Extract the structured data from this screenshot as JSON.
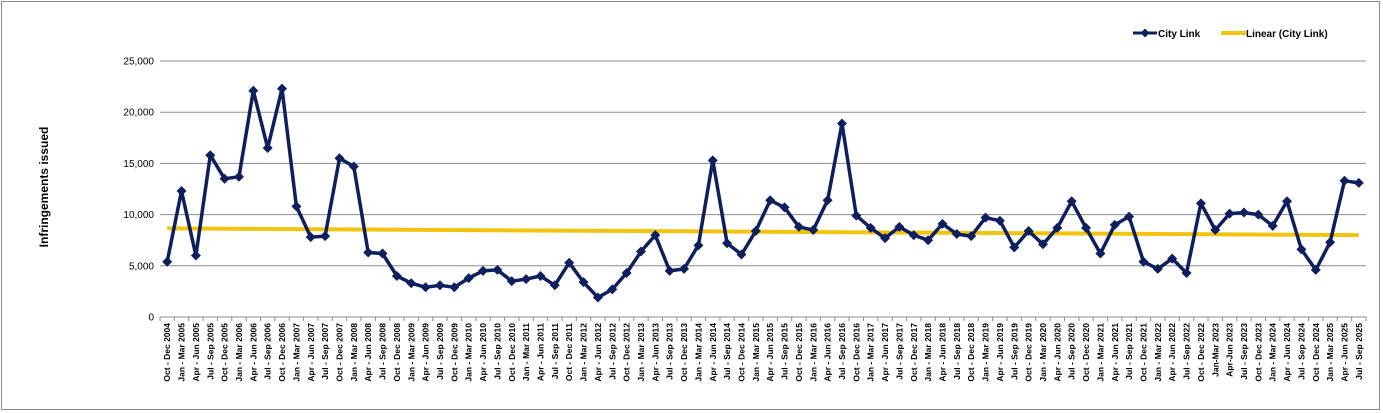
{
  "chart_data": {
    "type": "line",
    "ylabel": "Infringements issued",
    "ylim": [
      0,
      25000
    ],
    "yticks": [
      0,
      5000,
      10000,
      15000,
      20000,
      25000
    ],
    "ytick_labels": [
      "0",
      "5,000",
      "10,000",
      "15,000",
      "20,000",
      "25,000"
    ],
    "grid": "horizontal",
    "legend_position": "top-right",
    "categories": [
      "Oct - Dec 2004",
      "Jan - Mar 2005",
      "Apr - Jun 2005",
      "Jul - Sep 2005",
      "Oct - Dec 2005",
      "Jan - Mar 2006",
      "Apr - Jun 2006",
      "Jul - Sep 2006",
      "Oct - Dec 2006",
      "Jan - Mar 2007",
      "Apr - Jun 2007",
      "Jul - Sep 2007",
      "Oct - Dec 2007",
      "Jan - Mar 2008",
      "Apr - Jun 2008",
      "Jul - Sep 2008",
      "Oct - Dec 2008",
      "Jan - Mar 2009",
      "Apr - Jun 2009",
      "Jul - Sep 2009",
      "Oct - Dec 2009",
      "Jan - Mar 2010",
      "Apr - Jun 2010",
      "Jul - Sep 2010",
      "Oct - Dec 2010",
      "Jan - Mar 2011",
      "Apr - Jun 2011",
      "Jul - Sep 2011",
      "Oct - Dec 2011",
      "Jan - Mar 2012",
      "Apr - Jun 2012",
      "Jul - Sep 2012",
      "Oct - Dec 2012",
      "Jan - Mar 2013",
      "Apr - Jun 2013",
      "Jul - Sep 2013",
      "Oct - Dec 2013",
      "Jan - Mar 2014",
      "Apr - Jun 2014",
      "Jul - Sep 2014",
      "Oct - Dec 2014",
      "Jan - Mar 2015",
      "Apr - Jun 2015",
      "Jul - Sep 2015",
      "Oct - Dec 2015",
      "Jan - Mar 2016",
      "Apr - Jun 2016",
      "Jul - Sep 2016",
      "Oct - Dec 2016",
      "Jan - Mar 2017",
      "Apr - Jun 2017",
      "Jul - Sep 2017",
      "Oct - Dec 2017",
      "Jan - Mar 2018",
      "Apr - Jun 2018",
      "Jul - Sep 2018",
      "Oct - Dec 2018",
      "Jan - Mar 2019",
      "Apr - Jun 2019",
      "Jul - Sep 2019",
      "Oct - Dec 2019",
      "Jan - Mar 2020",
      "Apr - Jun 2020",
      "Jul - Sep 2020",
      "Oct - Dec 2020",
      "Jan - Mar 2021",
      "Apr - Jun 2021",
      "Jul - Sep 2021",
      "Oct - Dec 2021",
      "Jan - Mar 2022",
      "Apr - Jun 2022",
      "Jul - Sep 2022",
      "Oct - Dec 2022",
      "Jan-Mar 2023",
      "Apr-Jun 2023",
      "Jul - Sep 2023",
      "Oct - Dec 2023",
      "Jan - Mar 2024",
      "Apr - Jun 2024",
      "Jul - Sep 2024",
      "Oct - Dec 2024",
      "Jan - Mar 2025",
      "Apr - Jun 2025",
      "Jul - Sep 2025"
    ],
    "series": [
      {
        "name": "City Link",
        "color": "#0d1f5c",
        "marker": "diamond",
        "values": [
          5400,
          12300,
          6000,
          15800,
          13500,
          13700,
          22100,
          16500,
          22300,
          10800,
          7800,
          7900,
          15500,
          14700,
          6300,
          6200,
          4000,
          3300,
          2900,
          3100,
          2900,
          3800,
          4500,
          4600,
          3500,
          3700,
          4000,
          3100,
          5300,
          3400,
          1900,
          2700,
          4300,
          6400,
          8000,
          4500,
          4700,
          7000,
          15300,
          7200,
          6100,
          8400,
          11400,
          10700,
          8800,
          8500,
          11400,
          18900,
          9900,
          8700,
          7700,
          8800,
          8000,
          7500,
          9100,
          8100,
          7900,
          9700,
          9400,
          6800,
          8400,
          7100,
          8700,
          11300,
          8700,
          6200,
          9000,
          9800,
          5400,
          4700,
          5700,
          4300,
          11100,
          8500,
          10100,
          10200,
          10000,
          8900,
          11300,
          6600,
          4600,
          7300,
          13300,
          13100
        ]
      }
    ],
    "trendline": {
      "name": "Linear (City Link)",
      "type": "linear",
      "color": "#f2c40f",
      "start_value": 8650,
      "end_value": 8000
    }
  }
}
